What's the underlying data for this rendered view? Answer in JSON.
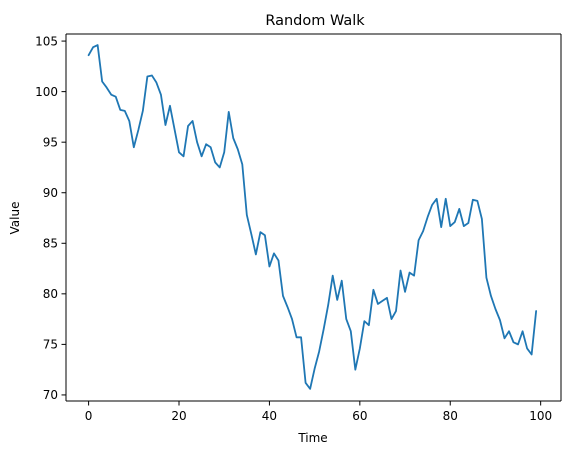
{
  "chart_data": {
    "type": "line",
    "title": "Random Walk",
    "xlabel": "Time",
    "ylabel": "Value",
    "xlim": [
      -5,
      104.5
    ],
    "ylim": [
      69.4,
      105.7
    ],
    "xticks": [
      0,
      20,
      40,
      60,
      80,
      100
    ],
    "yticks": [
      70,
      75,
      80,
      85,
      90,
      95,
      100,
      105
    ],
    "grid": false,
    "legend": "none",
    "series": [
      {
        "color": "#1f77b4",
        "x": [
          0,
          1,
          2,
          3,
          4,
          5,
          6,
          7,
          8,
          9,
          10,
          11,
          12,
          13,
          14,
          15,
          16,
          17,
          18,
          19,
          20,
          21,
          22,
          23,
          24,
          25,
          26,
          27,
          28,
          29,
          30,
          31,
          32,
          33,
          34,
          35,
          36,
          37,
          38,
          39,
          40,
          41,
          42,
          43,
          44,
          45,
          46,
          47,
          48,
          49,
          50,
          51,
          52,
          53,
          54,
          55,
          56,
          57,
          58,
          59,
          60,
          61,
          62,
          63,
          64,
          65,
          66,
          67,
          68,
          69,
          70,
          71,
          72,
          73,
          74,
          75,
          76,
          77,
          78,
          79,
          80,
          81,
          82,
          83,
          84,
          85,
          86,
          87,
          88,
          89,
          90,
          91,
          92,
          93,
          94,
          95,
          96,
          97,
          98,
          99
        ],
        "values": [
          103.6,
          104.4,
          104.6,
          101.0,
          100.4,
          99.7,
          99.5,
          98.2,
          98.1,
          97.1,
          94.5,
          96.2,
          98.1,
          101.5,
          101.6,
          100.9,
          99.7,
          96.7,
          98.6,
          96.3,
          94.0,
          93.6,
          96.6,
          97.1,
          95.0,
          93.6,
          94.8,
          94.5,
          93.0,
          92.5,
          94.0,
          98.0,
          95.4,
          94.3,
          92.8,
          87.8,
          85.9,
          83.9,
          86.1,
          85.8,
          82.7,
          84.0,
          83.3,
          79.8,
          78.7,
          77.5,
          75.7,
          75.7,
          71.2,
          70.6,
          72.6,
          74.3,
          76.5,
          78.9,
          81.8,
          79.4,
          81.3,
          77.5,
          76.3,
          72.5,
          74.6,
          77.3,
          76.9,
          80.4,
          79.0,
          79.3,
          79.6,
          77.5,
          78.3,
          82.3,
          80.2,
          82.1,
          81.8,
          85.3,
          86.2,
          87.6,
          88.8,
          89.4,
          86.6,
          89.4,
          86.7,
          87.1,
          88.4,
          86.7,
          87.0,
          89.3,
          89.2,
          87.4,
          81.6,
          79.8,
          78.5,
          77.4,
          75.6,
          76.3,
          75.2,
          75.0,
          76.3,
          74.6,
          74.0,
          78.3
        ]
      }
    ]
  }
}
